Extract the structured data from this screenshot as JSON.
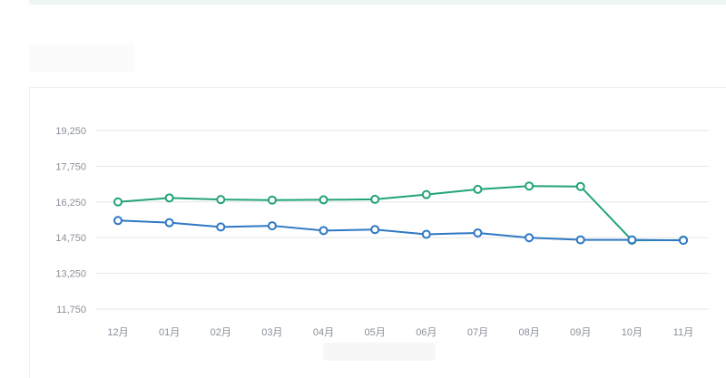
{
  "chart_data": {
    "type": "line",
    "categories": [
      "12月",
      "01月",
      "02月",
      "03月",
      "04月",
      "05月",
      "06月",
      "07月",
      "08月",
      "09月",
      "10月",
      "11月"
    ],
    "series": [
      {
        "color": "#22a37a",
        "values": [
          16250,
          16420,
          16350,
          16330,
          16340,
          16360,
          16560,
          16780,
          16920,
          16900,
          14640,
          14650
        ]
      },
      {
        "color": "#2f78c4",
        "values": [
          15470,
          15380,
          15200,
          15250,
          15050,
          15090,
          14890,
          14950,
          14750,
          14660,
          14660,
          14640
        ]
      }
    ],
    "yticks": [
      "11,750",
      "13,250",
      "14,750",
      "16,250",
      "17,750",
      "19,250"
    ],
    "ylim": [
      11750,
      19250
    ],
    "grid": true
  },
  "colors": {
    "gridline": "#e6e6e6",
    "axis_text": "#8a8f99"
  }
}
